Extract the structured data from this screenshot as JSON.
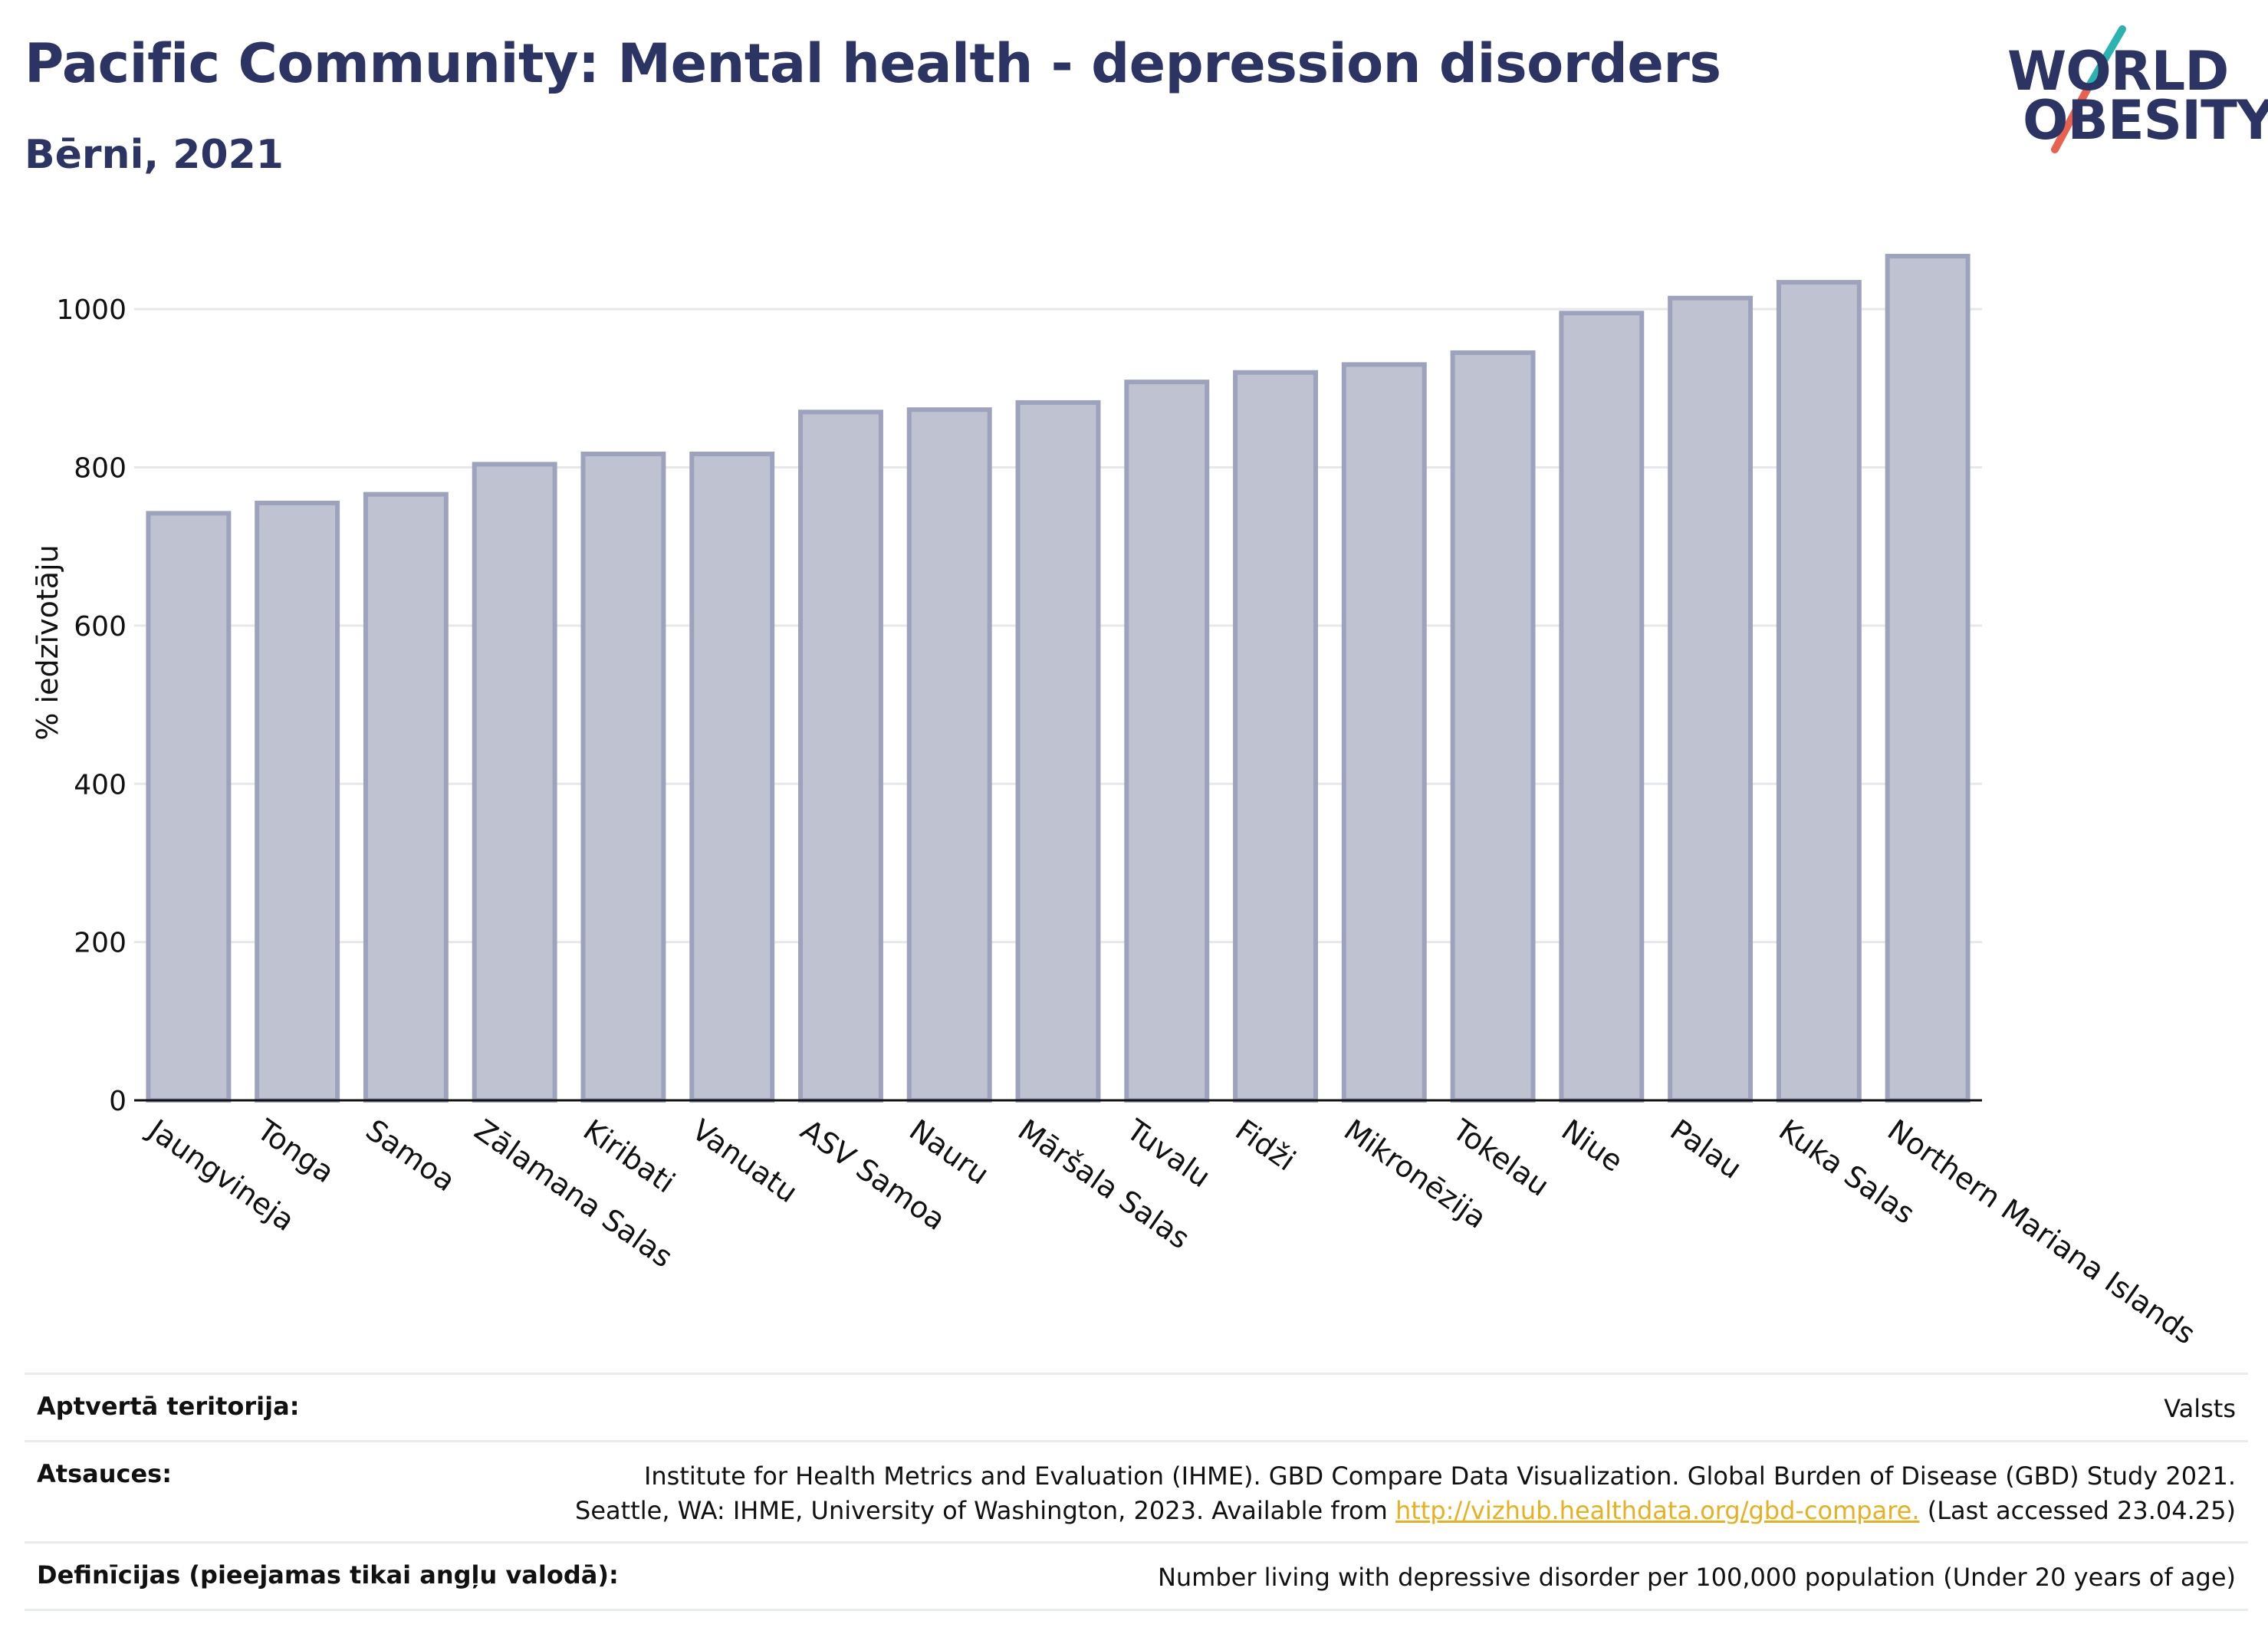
{
  "header": {
    "title": "Pacific Community: Mental health - depression disorders",
    "subtitle": "Bērni, 2021"
  },
  "logo": {
    "line1": "WORLD",
    "line2": "OBESITY",
    "colors": {
      "text": "#2b3462",
      "slash_top": "#2ab3b0",
      "slash_bottom": "#e8624f"
    }
  },
  "chart_data": {
    "type": "bar",
    "title": "",
    "xlabel": "",
    "ylabel": "% iedzīvotāju",
    "ylim": [
      0,
      1100
    ],
    "yticks": [
      0,
      200,
      400,
      600,
      800,
      1000
    ],
    "grid": true,
    "categories": [
      "Jaungvineja",
      "Tonga",
      "Samoa",
      "Zālamana Salas",
      "Kiribati",
      "Vanuatu",
      "ASV Samoa",
      "Nauru",
      "Māršala Salas",
      "Tuvalu",
      "Fidži",
      "Mikronēzija",
      "Tokelau",
      "Niue",
      "Palau",
      "Kuka Salas",
      "Northern Mariana Islands"
    ],
    "values": [
      742,
      755,
      766,
      804,
      817,
      817,
      870,
      873,
      882,
      908,
      920,
      930,
      945,
      995,
      1014,
      1034,
      1067
    ],
    "colors": {
      "bar_fill": "#bfc2d0",
      "bar_stroke": "#9ea3bd",
      "grid": "#e6e8ec",
      "axis": "#111111"
    }
  },
  "footer": {
    "rows": [
      {
        "label": "Aptvertā teritorija:",
        "value_lines": [
          "Valsts"
        ]
      },
      {
        "label": "Atsauces:",
        "value_lines": [
          "Institute for Health Metrics and Evaluation (IHME). GBD Compare Data Visualization. Global Burden of Disease (GBD) Study 2021.",
          "Seattle, WA: IHME, University of Washington, 2023. Available from"
        ],
        "link": "http://vizhub.healthdata.org/gbd-compare.",
        "after_link": "(Last accessed 23.04.25)"
      },
      {
        "label": "Definīcijas (pieejamas tikai angļu valodā):",
        "value_lines": [
          "Number living with depressive disorder per 100,000 population (Under 20 years of age)"
        ]
      }
    ]
  }
}
